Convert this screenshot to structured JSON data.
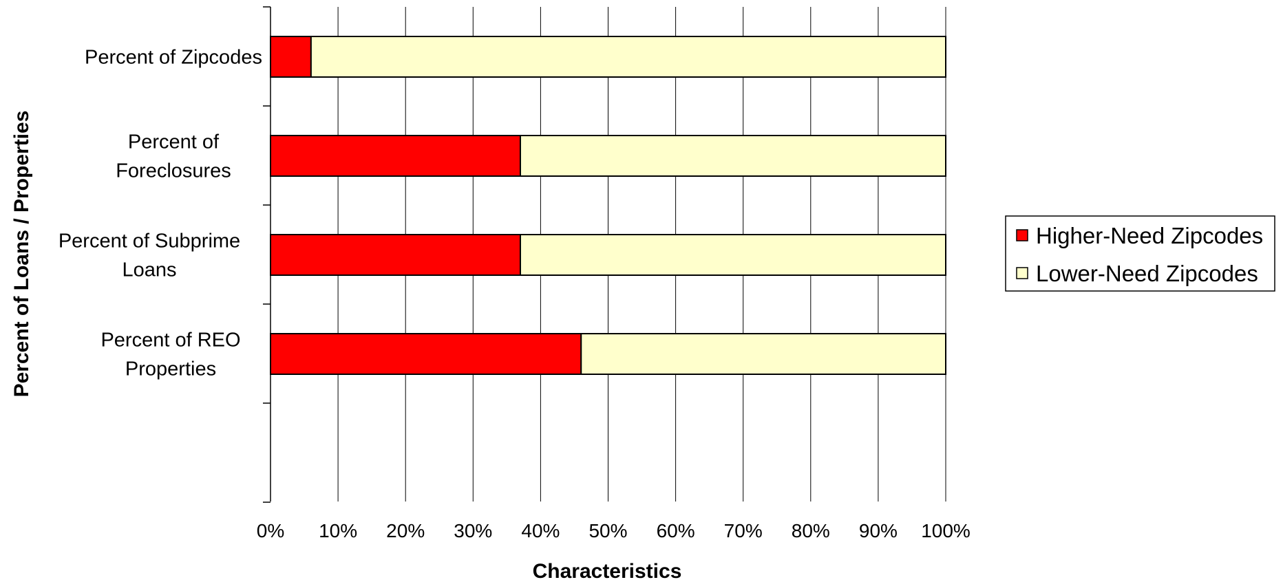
{
  "chart_data": {
    "type": "bar",
    "orientation": "horizontal",
    "stacked": "percent",
    "categories": [
      [
        "Percent of Zipcodes"
      ],
      [
        "Percent of",
        "Foreclosures"
      ],
      [
        "Percent of Subprime",
        "Loans"
      ],
      [
        "Percent of REO",
        "Properties"
      ]
    ],
    "series": [
      {
        "name": "Higher-Need Zipcodes",
        "color": "#ff0000",
        "values": [
          6,
          37,
          37,
          46
        ]
      },
      {
        "name": "Lower-Need Zipcodes",
        "color": "#ffffcc",
        "values": [
          94,
          63,
          63,
          54
        ]
      }
    ],
    "xlabel": "Characteristics",
    "ylabel": "Percent of Loans / Properties",
    "xlim": [
      0,
      100
    ],
    "x_ticks": [
      "0%",
      "10%",
      "20%",
      "30%",
      "40%",
      "50%",
      "60%",
      "70%",
      "80%",
      "90%",
      "100%"
    ],
    "grid": "vertical",
    "legend_position": "right"
  }
}
